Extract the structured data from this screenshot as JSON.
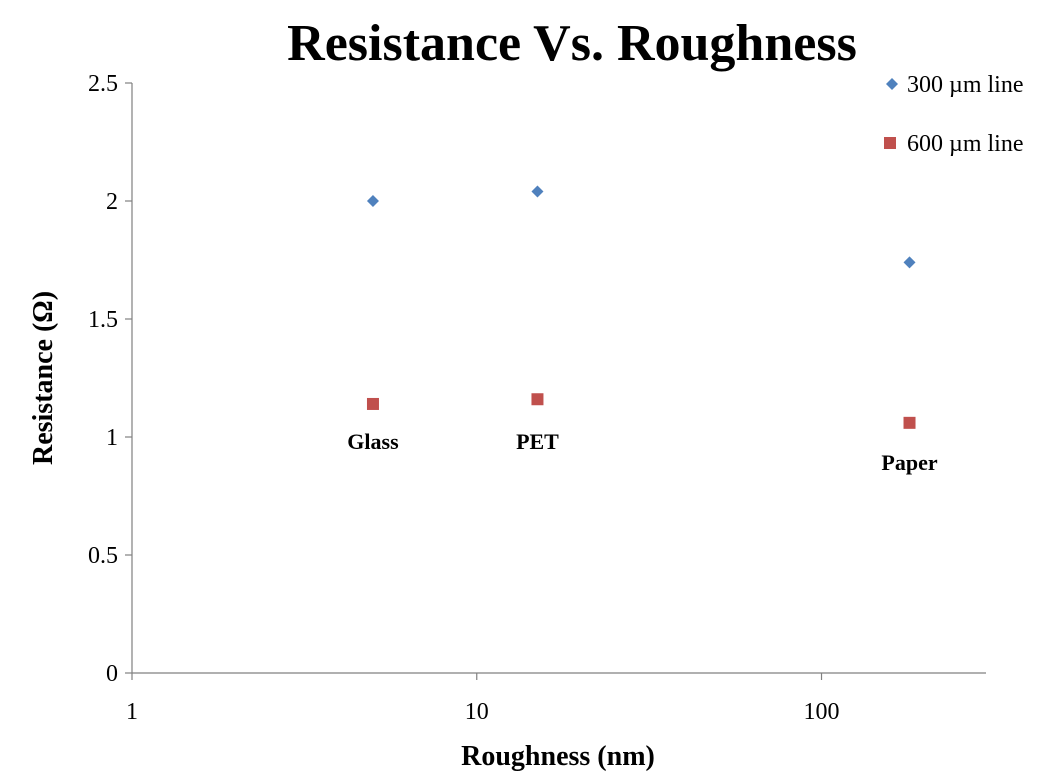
{
  "chart_data": {
    "type": "scatter",
    "title": "Resistance Vs. Roughness",
    "xlabel": "Roughness (nm)",
    "ylabel": "Resistance (Ω)",
    "x_scale": "log",
    "xlim": [
      1,
      300
    ],
    "ylim": [
      0,
      2.5
    ],
    "x_ticks": [
      {
        "value": 1,
        "label": "1"
      },
      {
        "value": 10,
        "label": "10"
      },
      {
        "value": 100,
        "label": "100"
      }
    ],
    "y_ticks": [
      {
        "value": 0,
        "label": "0"
      },
      {
        "value": 0.5,
        "label": "0.5"
      },
      {
        "value": 1,
        "label": "1"
      },
      {
        "value": 1.5,
        "label": "1.5"
      },
      {
        "value": 2,
        "label": "2"
      },
      {
        "value": 2.5,
        "label": "2.5"
      }
    ],
    "grid": false,
    "legend": "top-right",
    "series": [
      {
        "name": "300 µm line",
        "marker": "diamond",
        "color": "#4f81bd",
        "x": [
          5,
          15,
          180
        ],
        "y": [
          2.0,
          2.04,
          1.74
        ]
      },
      {
        "name": "600 µm line",
        "marker": "square",
        "color": "#c0504d",
        "x": [
          5,
          15,
          180
        ],
        "y": [
          1.14,
          1.16,
          1.06
        ]
      }
    ],
    "annotations": [
      {
        "text": "Glass",
        "x": 5,
        "y": 0.95
      },
      {
        "text": "PET",
        "x": 15,
        "y": 0.95
      },
      {
        "text": "Paper",
        "x": 180,
        "y": 0.86
      }
    ]
  }
}
